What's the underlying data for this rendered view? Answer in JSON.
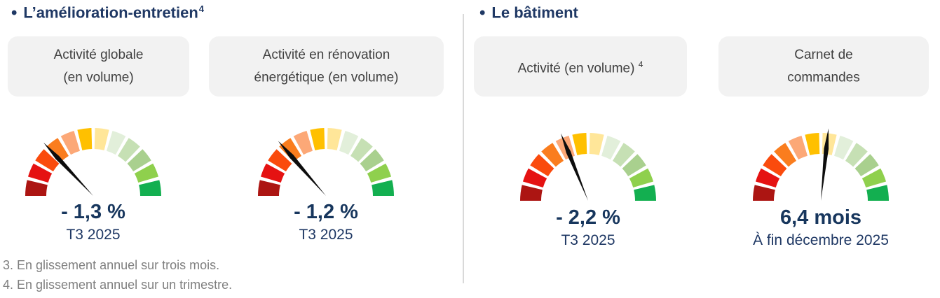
{
  "bullet_char": "•",
  "sections": [
    {
      "title": "L’amélioration-entretien",
      "title_sup": "4",
      "gauges": [
        {
          "card_label": "Activité globale\n(en volume)",
          "card_sup": "",
          "value": "- 1,3 %",
          "period": "T3 2025",
          "needle_angle_deg": 133
        },
        {
          "card_label": "Activité en rénovation\nénergétique (en volume)",
          "card_sup": "",
          "value": "- 1,2 %",
          "period": "T3 2025",
          "needle_angle_deg": 131
        }
      ]
    },
    {
      "title": "Le bâtiment",
      "title_sup": "",
      "gauges": [
        {
          "card_label": "Activité (en volume) ",
          "card_sup": "4",
          "value": "- 2,2 %",
          "period": "T3 2025",
          "needle_angle_deg": 112
        },
        {
          "card_label": "Carnet de\ncommandes",
          "card_sup": "",
          "value": "6,4 mois",
          "period": "À fin décembre 2025",
          "needle_angle_deg": 84
        }
      ]
    }
  ],
  "footnotes": [
    "3. En glissement annuel sur trois mois.",
    "4. En glissement annuel sur un trimestre."
  ],
  "gauge_style": {
    "segment_colors": [
      "#AC1512",
      "#E51212",
      "#FA4B0D",
      "#FA7D1E",
      "#FCA877",
      "#FFC000",
      "#FFE699",
      "#E2EFDA",
      "#C6E0B4",
      "#A9D08E",
      "#8FD04D",
      "#13AF50"
    ],
    "needle_color": "#0D0D0D",
    "scale_note": "red (left, worst) to green (right, best), 12 segments over 180°"
  },
  "colors": {
    "heading": "#1F3864",
    "value_text": "#17365D",
    "period_text": "#1F3864",
    "card_bg": "#F2F2F2",
    "card_text": "#3F3F3F",
    "footnote_text": "#7F7F7F",
    "divider": "#D9D9D9",
    "background": "#FFFFFF"
  },
  "chart_data": [
    {
      "type": "gauge",
      "section": "L’amélioration-entretien",
      "title": "Activité globale (en volume)",
      "value": -1.3,
      "unit": "%",
      "period": "T3 2025",
      "segments": 12,
      "scale": "semicircular, dark red (left/worst) to green (right/best)",
      "needle_angle_deg_from_east": 133
    },
    {
      "type": "gauge",
      "section": "L’amélioration-entretien",
      "title": "Activité en rénovation énergétique (en volume)",
      "value": -1.2,
      "unit": "%",
      "period": "T3 2025",
      "segments": 12,
      "scale": "semicircular, dark red (left/worst) to green (right/best)",
      "needle_angle_deg_from_east": 131
    },
    {
      "type": "gauge",
      "section": "Le bâtiment",
      "title": "Activité (en volume)",
      "value": -2.2,
      "unit": "%",
      "period": "T3 2025",
      "segments": 12,
      "scale": "semicircular, dark red (left/worst) to green (right/best)",
      "needle_angle_deg_from_east": 112
    },
    {
      "type": "gauge",
      "section": "Le bâtiment",
      "title": "Carnet de commandes",
      "value": 6.4,
      "unit": "mois",
      "period": "À fin décembre 2025",
      "segments": 12,
      "scale": "semicircular, dark red (left/worst) to green (right/best)",
      "needle_angle_deg_from_east": 84
    }
  ]
}
